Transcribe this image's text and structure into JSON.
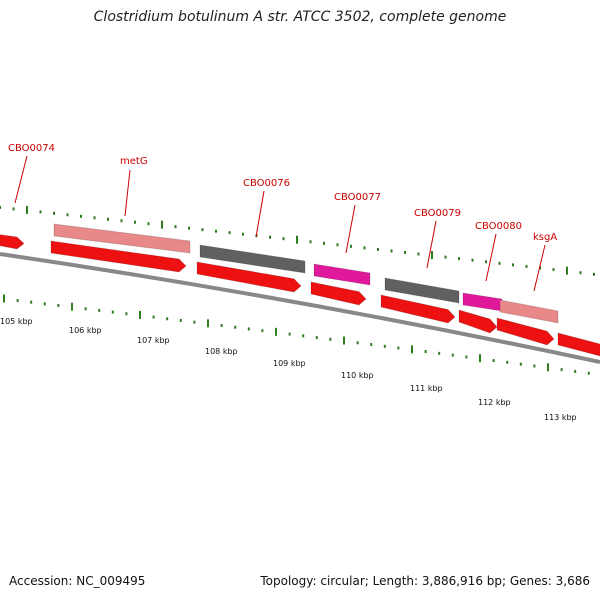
{
  "title": "Clostridium botulinum A str. ATCC 3502, complete genome",
  "accession": "Accession: NC_009495",
  "summary": "Topology: circular; Length: 3,886,916 bp; Genes: 3,686",
  "colors": {
    "genome_line": "#888888",
    "tick": "#2e7d1f",
    "red_gene": "#ee1111",
    "pink_gene": "#e88888",
    "gray_gene": "#606060",
    "magenta_gene": "#e0199a",
    "label": "#cc0000"
  },
  "gene_labels": [
    "CBO0074",
    "metG",
    "CBO0076",
    "CBO0077",
    "CBO0079",
    "CBO0080",
    "ksgA"
  ],
  "kbp_labels": [
    "105 kbp",
    "106 kbp",
    "107 kbp",
    "108 kbp",
    "109 kbp",
    "110 kbp",
    "111 kbp",
    "112 kbp",
    "113 kbp"
  ]
}
